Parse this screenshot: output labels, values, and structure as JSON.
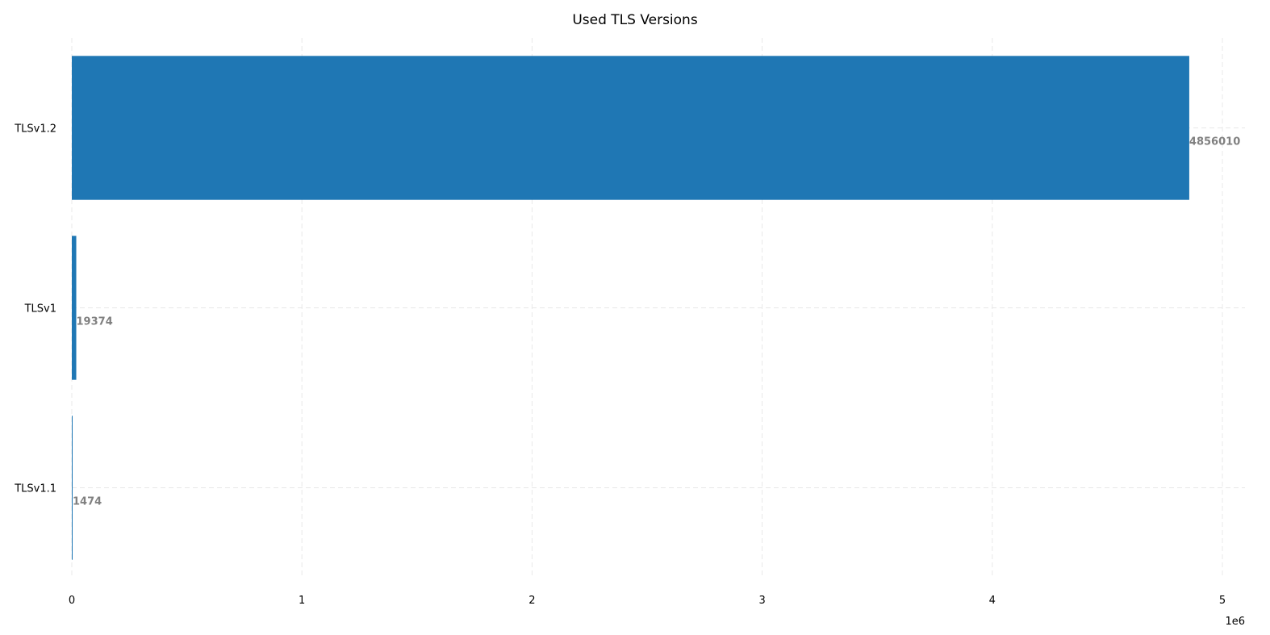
{
  "chart_data": {
    "type": "bar",
    "orientation": "horizontal",
    "title": "Used TLS Versions",
    "xlabel": "",
    "ylabel": "",
    "categories": [
      "TLSv1.2",
      "TLSv1",
      "TLSv1.1"
    ],
    "values": [
      4856010,
      19374,
      1474
    ],
    "data_labels": [
      "4856010",
      "19374",
      "1474"
    ],
    "xlim": [
      0,
      5100000
    ],
    "x_ticks": [
      0,
      1,
      2,
      3,
      4,
      5
    ],
    "x_tick_labels": [
      "0",
      "1",
      "2",
      "3",
      "4",
      "5"
    ],
    "x_scale_label": "1e6",
    "grid": true,
    "bar_color": "#1f77b4",
    "label_color": "#808080"
  }
}
